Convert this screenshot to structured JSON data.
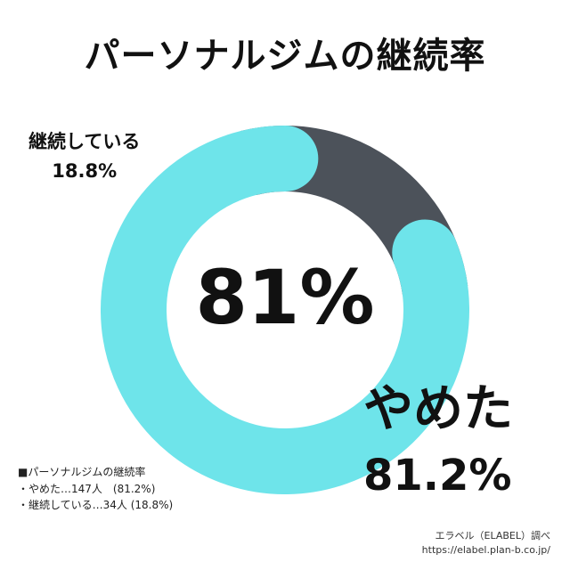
{
  "title": "パーソナルジムの継続率",
  "chart_data": {
    "type": "pie",
    "categories": [
      "やめた",
      "継続している"
    ],
    "values": [
      81.2,
      18.8
    ],
    "colors": [
      "#6ee4ea",
      "#4c525a"
    ],
    "center_label": "81%",
    "labels": [
      {
        "name": "やめた",
        "value": "81.2%"
      },
      {
        "name": "継続している",
        "value": "18.8%"
      }
    ]
  },
  "notes": {
    "header": "■パーソナルジムの継続率",
    "lines": [
      "・やめた…147人　(81.2%)",
      "・継続している…34人 (18.8%)"
    ]
  },
  "source": {
    "credit": "エラベル（ELABEL）調べ",
    "url": "https://elabel.plan-b.co.jp/"
  }
}
